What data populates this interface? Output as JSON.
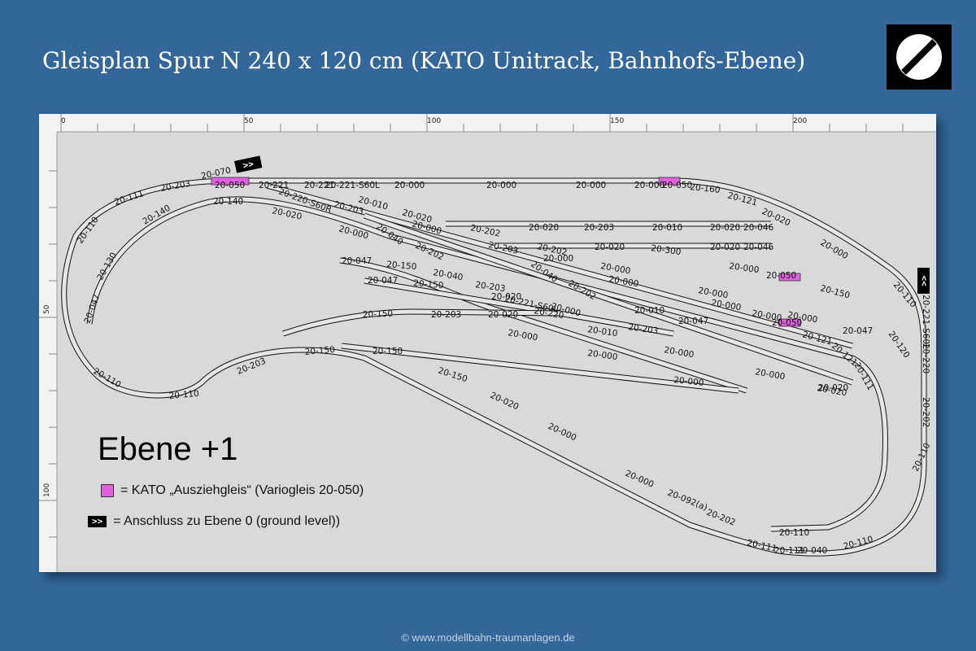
{
  "title": "Gleisplan Spur N 240 x 120 cm (KATO Unitrack, Bahnhofs-Ebene)",
  "logo_icon": "no-entry-sign-icon",
  "ruler": {
    "top": [
      "0",
      "50",
      "100",
      "150",
      "200"
    ],
    "left": [
      "50",
      "100"
    ]
  },
  "level_title": "Ebene +1",
  "legend": {
    "variable_track_text": "= KATO „Ausziehgleis“ (Variogleis 20-050)",
    "variable_track_color": "#e060e0",
    "connection_symbol": ">>",
    "connection_text": "= Anschluss zu Ebene 0 (ground level))"
  },
  "connectors": {
    "top_left": ">>",
    "right": ">>"
  },
  "track_labels": [
    "20-070",
    "20-203",
    "20-111",
    "20-110",
    "20-050",
    "20-221",
    "20-221",
    "20-221-S60L",
    "20-000",
    "20-000",
    "20-000",
    "20-000",
    "20-050",
    "20-160",
    "20-121",
    "20-020",
    "20-000",
    "20-110",
    "20-221-S60L",
    "20-220",
    "20-202",
    "20-110",
    "20-110",
    "20-040",
    "20-111",
    "20-111",
    "20-110",
    "20-092(a)",
    "20-202",
    "20-000",
    "20-000",
    "20-020",
    "20-150",
    "20-150",
    "20-150",
    "20-203",
    "20-110",
    "20-110",
    "20-047",
    "20-130",
    "20-140",
    "20-140",
    "20-020",
    "20-000",
    "20-040",
    "20-202",
    "20-220-S60R",
    "20-203",
    "20-010",
    "20-020",
    "20-000",
    "20-202",
    "20-203",
    "20-202",
    "20-020",
    "20-203",
    "20-010",
    "20-020",
    "20-046",
    "20-020",
    "20-300",
    "20-020",
    "20-046",
    "20-000",
    "20-050",
    "20-150",
    "20-047",
    "20-150",
    "20-040",
    "20-047",
    "20-150",
    "20-203",
    "20-020",
    "20-221-S60L",
    "20-220",
    "20-000",
    "20-040",
    "20-000",
    "20-202",
    "20-010",
    "20-203",
    "20-010",
    "20-047",
    "20-000",
    "20-000",
    "20-000",
    "20-000",
    "20-000",
    "20-000",
    "20-000",
    "20-050",
    "20-121",
    "20-121",
    "20-111",
    "20-047",
    "20-120",
    "20-020",
    "20-150",
    "20-203",
    "20-020",
    "20-000",
    "20-000",
    "20-000",
    "20-000",
    "20-020"
  ]
}
